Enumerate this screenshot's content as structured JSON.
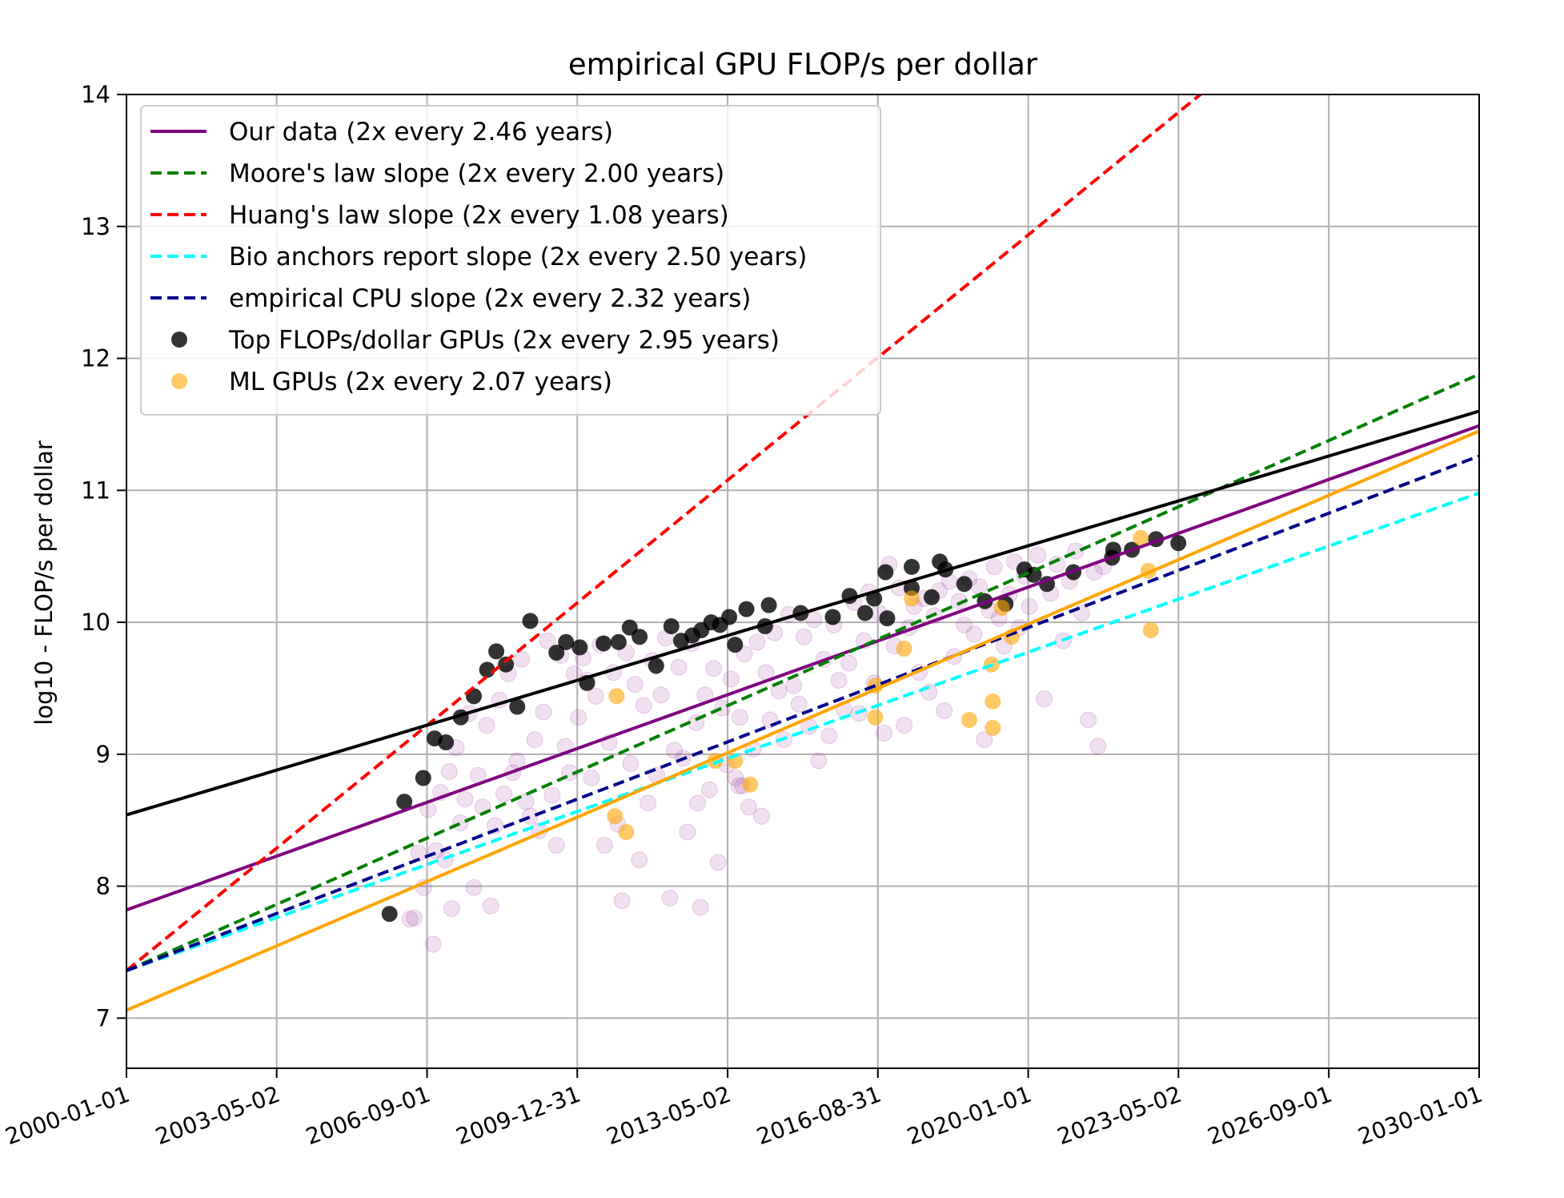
{
  "chart_data": {
    "type": "scatter",
    "title": "empirical GPU FLOP/s per dollar",
    "xlabel": "",
    "ylabel": "log10 - FLOP/s per dollar",
    "x_axis": {
      "kind": "date",
      "min": "2000-01-01",
      "max": "2030-01-01"
    },
    "ylim": [
      6.62,
      14.0
    ],
    "x_ticks": [
      "2000-01-01",
      "2003-05-02",
      "2006-09-01",
      "2009-12-31",
      "2013-05-02",
      "2016-08-31",
      "2020-01-01",
      "2023-05-02",
      "2026-09-01",
      "2030-01-01"
    ],
    "y_ticks": [
      7,
      8,
      9,
      10,
      11,
      12,
      13,
      14
    ],
    "grid": true,
    "legend_position": "top-left",
    "lines": [
      {
        "name": "Our data (2x every 2.46 years)",
        "color": "#800080",
        "style": "solid",
        "points": [
          [
            "2000-01-01",
            7.82
          ],
          [
            "2030-01-01",
            11.49
          ]
        ]
      },
      {
        "name": "Moore's law slope (2x every 2.00 years)",
        "color": "#008000",
        "style": "dashed",
        "points": [
          [
            "2000-01-01",
            7.36
          ],
          [
            "2030-01-01",
            11.88
          ]
        ]
      },
      {
        "name": "Huang's law slope (2x every 1.08 years)",
        "color": "#ff0000",
        "style": "dashed",
        "points": [
          [
            "2000-01-01",
            7.36
          ],
          [
            "2025-01-01",
            14.33
          ]
        ]
      },
      {
        "name": "Bio anchors report slope (2x every 2.50 years)",
        "color": "#00ffff",
        "style": "dashed",
        "points": [
          [
            "2000-01-01",
            7.36
          ],
          [
            "2030-01-01",
            10.98
          ]
        ]
      },
      {
        "name": "empirical CPU slope (2x every 2.32 years)",
        "color": "#00008b",
        "style": "dashed",
        "points": [
          [
            "2000-01-01",
            7.36
          ],
          [
            "2030-01-01",
            11.26
          ]
        ]
      },
      {
        "name": "",
        "color": "#000000",
        "style": "solid",
        "points": [
          [
            "2000-01-01",
            8.54
          ],
          [
            "2030-01-01",
            11.6
          ]
        ]
      },
      {
        "name": "",
        "color": "#ffa500",
        "style": "solid",
        "points": [
          [
            "2000-01-01",
            7.06
          ],
          [
            "2030-01-01",
            11.45
          ]
        ]
      }
    ],
    "series": [
      {
        "name": "",
        "color": "#800080",
        "opacity": 0.12,
        "points": [
          [
            "2006-04-15",
            7.75
          ],
          [
            "2006-05-20",
            7.76
          ],
          [
            "2006-06-25",
            8.25
          ],
          [
            "2006-08-05",
            7.99
          ],
          [
            "2006-09-10",
            8.58
          ],
          [
            "2006-10-20",
            7.56
          ],
          [
            "2006-11-15",
            8.27
          ],
          [
            "2006-12-20",
            8.71
          ],
          [
            "2007-01-25",
            8.2
          ],
          [
            "2007-02-28",
            8.87
          ],
          [
            "2007-03-20",
            7.83
          ],
          [
            "2007-04-25",
            9.05
          ],
          [
            "2007-05-30",
            8.48
          ],
          [
            "2007-07-05",
            8.66
          ],
          [
            "2007-08-10",
            9.31
          ],
          [
            "2007-09-15",
            7.99
          ],
          [
            "2007-10-20",
            8.84
          ],
          [
            "2007-11-25",
            8.6
          ],
          [
            "2007-12-28",
            9.22
          ],
          [
            "2008-01-30",
            7.85
          ],
          [
            "2008-03-05",
            8.46
          ],
          [
            "2008-04-10",
            9.41
          ],
          [
            "2008-05-15",
            8.7
          ],
          [
            "2008-06-20",
            9.61
          ],
          [
            "2008-07-25",
            8.86
          ],
          [
            "2008-08-30",
            8.95
          ],
          [
            "2008-10-05",
            9.72
          ],
          [
            "2008-11-10",
            8.64
          ],
          [
            "2008-12-15",
            8.53
          ],
          [
            "2009-01-20",
            9.11
          ],
          [
            "2009-02-25",
            8.42
          ],
          [
            "2009-04-01",
            9.32
          ],
          [
            "2009-05-05",
            9.86
          ],
          [
            "2009-06-10",
            8.69
          ],
          [
            "2009-07-15",
            8.31
          ],
          [
            "2009-08-20",
            9.75
          ],
          [
            "2009-09-25",
            9.06
          ],
          [
            "2009-10-30",
            8.86
          ],
          [
            "2009-12-05",
            9.61
          ],
          [
            "2010-01-10",
            9.28
          ],
          [
            "2010-02-15",
            9.73
          ],
          [
            "2010-03-20",
            9.56
          ],
          [
            "2010-04-25",
            8.82
          ],
          [
            "2010-05-30",
            9.44
          ],
          [
            "2010-07-05",
            9.83
          ],
          [
            "2010-08-10",
            8.31
          ],
          [
            "2010-09-15",
            9.09
          ],
          [
            "2010-10-20",
            9.62
          ],
          [
            "2010-11-25",
            8.47
          ],
          [
            "2010-12-28",
            7.89
          ],
          [
            "2011-02-01",
            9.77
          ],
          [
            "2011-03-08",
            8.93
          ],
          [
            "2011-04-12",
            9.53
          ],
          [
            "2011-05-18",
            8.2
          ],
          [
            "2011-06-22",
            9.37
          ],
          [
            "2011-07-28",
            8.63
          ],
          [
            "2011-09-01",
            9.71
          ],
          [
            "2011-10-06",
            8.84
          ],
          [
            "2011-11-10",
            9.45
          ],
          [
            "2011-12-16",
            9.88
          ],
          [
            "2012-01-20",
            7.91
          ],
          [
            "2012-02-25",
            9.03
          ],
          [
            "2012-04-01",
            9.66
          ],
          [
            "2012-05-06",
            8.97
          ],
          [
            "2012-06-11",
            8.41
          ],
          [
            "2012-07-16",
            9.84
          ],
          [
            "2012-08-20",
            9.24
          ],
          [
            "2012-09-25",
            7.84
          ],
          [
            "2012-10-30",
            9.45
          ],
          [
            "2012-12-05",
            8.73
          ],
          [
            "2013-01-10",
            9.65
          ],
          [
            "2013-02-14",
            8.18
          ],
          [
            "2013-03-21",
            9.35
          ],
          [
            "2013-04-25",
            8.92
          ],
          [
            "2013-05-30",
            9.57
          ],
          [
            "2013-07-05",
            8.82
          ],
          [
            "2013-08-10",
            9.28
          ],
          [
            "2013-09-15",
            9.76
          ],
          [
            "2013-10-20",
            8.6
          ],
          [
            "2013-11-25",
            9.04
          ],
          [
            "2013-12-28",
            9.85
          ],
          [
            "2014-02-01",
            8.53
          ],
          [
            "2014-03-08",
            9.62
          ],
          [
            "2014-04-12",
            9.26
          ],
          [
            "2014-05-18",
            9.92
          ],
          [
            "2014-06-22",
            9.48
          ],
          [
            "2014-08-01",
            9.11
          ],
          [
            "2014-09-10",
            10.06
          ],
          [
            "2014-10-20",
            9.52
          ],
          [
            "2014-12-01",
            9.38
          ],
          [
            "2015-01-10",
            9.89
          ],
          [
            "2015-02-20",
            9.21
          ],
          [
            "2015-04-01",
            10.02
          ],
          [
            "2015-05-10",
            8.95
          ],
          [
            "2015-06-20",
            9.72
          ],
          [
            "2015-08-01",
            9.14
          ],
          [
            "2015-09-10",
            9.98
          ],
          [
            "2015-10-20",
            9.56
          ],
          [
            "2015-12-01",
            9.34
          ],
          [
            "2016-01-10",
            9.69
          ],
          [
            "2016-02-20",
            10.15
          ],
          [
            "2016-04-01",
            9.31
          ],
          [
            "2016-05-10",
            9.86
          ],
          [
            "2016-06-20",
            10.23
          ],
          [
            "2016-08-01",
            9.54
          ],
          [
            "2016-09-10",
            10.07
          ],
          [
            "2016-10-20",
            9.16
          ],
          [
            "2016-12-01",
            10.44
          ],
          [
            "2017-01-10",
            9.82
          ],
          [
            "2017-02-20",
            10.26
          ],
          [
            "2017-04-01",
            9.22
          ],
          [
            "2017-05-10",
            9.96
          ],
          [
            "2017-06-20",
            10.12
          ],
          [
            "2017-08-01",
            9.62
          ],
          [
            "2017-09-10",
            10.18
          ],
          [
            "2017-10-20",
            9.47
          ],
          [
            "2017-12-01",
            10.05
          ],
          [
            "2018-01-10",
            10.24
          ],
          [
            "2018-02-20",
            9.33
          ],
          [
            "2018-04-01",
            10.31
          ],
          [
            "2018-05-10",
            9.74
          ],
          [
            "2018-06-20",
            10.16
          ],
          [
            "2018-08-01",
            9.98
          ],
          [
            "2018-09-10",
            10.33
          ],
          [
            "2018-10-20",
            9.91
          ],
          [
            "2018-12-01",
            10.27
          ],
          [
            "2019-01-10",
            9.11
          ],
          [
            "2019-02-20",
            10.09
          ],
          [
            "2019-04-01",
            10.42
          ],
          [
            "2019-05-10",
            10.03
          ],
          [
            "2019-06-20",
            9.82
          ],
          [
            "2019-08-01",
            10.21
          ],
          [
            "2019-09-10",
            10.46
          ],
          [
            "2019-10-20",
            9.96
          ],
          [
            "2019-12-01",
            10.35
          ],
          [
            "2020-01-10",
            10.12
          ],
          [
            "2020-03-20",
            10.51
          ],
          [
            "2020-05-10",
            9.42
          ],
          [
            "2020-07-01",
            10.22
          ],
          [
            "2020-08-20",
            10.44
          ],
          [
            "2020-10-10",
            9.86
          ],
          [
            "2020-12-01",
            10.31
          ],
          [
            "2021-01-20",
            10.54
          ],
          [
            "2021-03-10",
            10.07
          ],
          [
            "2021-05-01",
            9.26
          ],
          [
            "2021-06-20",
            10.38
          ],
          [
            "2021-07-20",
            9.06
          ],
          [
            "2021-09-01",
            10.42
          ],
          [
            "2013-08-01",
            8.76
          ],
          [
            "2013-09-01",
            8.76
          ],
          [
            "2012-09-01",
            8.63
          ]
        ]
      },
      {
        "name": "Top FLOPs/dollar GPUs (2x every 2.95 years)",
        "color": "#000000",
        "opacity": 0.8,
        "points": [
          [
            "2005-11-01",
            7.79
          ],
          [
            "2006-03-01",
            8.64
          ],
          [
            "2006-08-01",
            8.82
          ],
          [
            "2006-11-01",
            9.12
          ],
          [
            "2007-02-01",
            9.09
          ],
          [
            "2007-06-01",
            9.28
          ],
          [
            "2007-09-15",
            9.44
          ],
          [
            "2008-01-01",
            9.64
          ],
          [
            "2008-03-15",
            9.78
          ],
          [
            "2008-06-01",
            9.68
          ],
          [
            "2008-09-01",
            9.36
          ],
          [
            "2008-12-15",
            10.01
          ],
          [
            "2009-07-15",
            9.77
          ],
          [
            "2009-10-01",
            9.85
          ],
          [
            "2010-01-20",
            9.81
          ],
          [
            "2010-03-20",
            9.54
          ],
          [
            "2010-08-01",
            9.84
          ],
          [
            "2010-12-01",
            9.85
          ],
          [
            "2011-03-01",
            9.96
          ],
          [
            "2011-05-20",
            9.89
          ],
          [
            "2011-10-01",
            9.67
          ],
          [
            "2012-02-01",
            9.97
          ],
          [
            "2012-04-20",
            9.86
          ],
          [
            "2012-07-20",
            9.9
          ],
          [
            "2012-10-01",
            9.94
          ],
          [
            "2012-12-20",
            10.0
          ],
          [
            "2013-03-01",
            9.98
          ],
          [
            "2013-05-15",
            10.04
          ],
          [
            "2013-07-01",
            9.83
          ],
          [
            "2013-10-01",
            10.1
          ],
          [
            "2014-04-01",
            10.13
          ],
          [
            "2014-03-01",
            9.97
          ],
          [
            "2014-12-15",
            10.07
          ],
          [
            "2015-09-01",
            10.04
          ],
          [
            "2016-01-15",
            10.2
          ],
          [
            "2016-05-20",
            10.07
          ],
          [
            "2016-08-01",
            10.18
          ],
          [
            "2016-11-15",
            10.03
          ],
          [
            "2016-11-01",
            10.38
          ],
          [
            "2017-06-01",
            10.42
          ],
          [
            "2017-06-01",
            10.26
          ],
          [
            "2017-11-10",
            10.19
          ],
          [
            "2018-01-15",
            10.46
          ],
          [
            "2018-03-01",
            10.4
          ],
          [
            "2018-08-01",
            10.29
          ],
          [
            "2019-01-15",
            10.16
          ],
          [
            "2019-07-01",
            10.14
          ],
          [
            "2019-12-01",
            10.4
          ],
          [
            "2020-02-15",
            10.36
          ],
          [
            "2020-06-01",
            10.29
          ],
          [
            "2021-01-01",
            10.38
          ],
          [
            "2021-11-10",
            10.49
          ],
          [
            "2021-11-20",
            10.55
          ],
          [
            "2022-04-20",
            10.55
          ],
          [
            "2022-11-01",
            10.63
          ],
          [
            "2023-05-01",
            10.6
          ]
        ]
      },
      {
        "name": "ML GPUs (2x every 2.07 years)",
        "color": "#ffa500",
        "opacity": 0.6,
        "points": [
          [
            "2010-11-15",
            9.44
          ],
          [
            "2010-11-01",
            8.53
          ],
          [
            "2011-02-01",
            8.41
          ],
          [
            "2013-01-20",
            8.95
          ],
          [
            "2013-07-01",
            8.95
          ],
          [
            "2013-11-01",
            8.77
          ],
          [
            "2016-08-10",
            9.52
          ],
          [
            "2016-08-10",
            9.28
          ],
          [
            "2017-04-01",
            9.8
          ],
          [
            "2017-06-01",
            10.18
          ],
          [
            "2018-09-10",
            9.26
          ],
          [
            "2019-03-10",
            9.68
          ],
          [
            "2019-03-20",
            9.4
          ],
          [
            "2019-03-20",
            9.2
          ],
          [
            "2019-06-01",
            10.11
          ],
          [
            "2019-08-20",
            9.89
          ],
          [
            "2022-07-01",
            10.64
          ],
          [
            "2022-09-01",
            10.39
          ],
          [
            "2022-09-20",
            9.94
          ]
        ]
      }
    ]
  }
}
